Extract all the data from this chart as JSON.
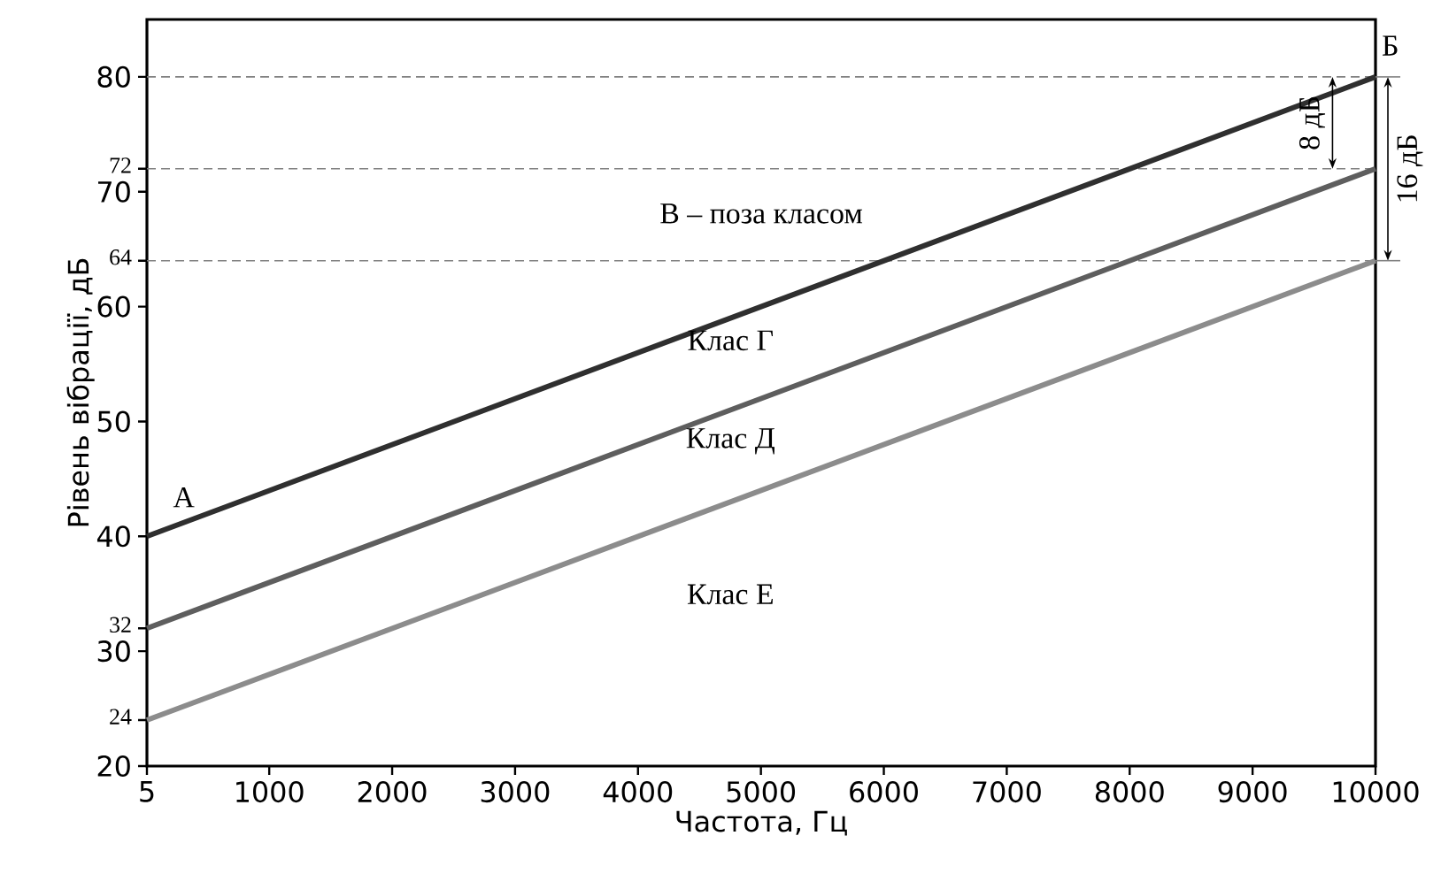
{
  "chart_data": {
    "type": "line",
    "xlabel": "Частота, Гц",
    "ylabel": "Рівень вібрації, дБ",
    "x": [
      5,
      10000
    ],
    "series": [
      {
        "color": "#2f2f2f",
        "values": [
          40,
          80
        ]
      },
      {
        "color": "#5e5e5e",
        "values": [
          32,
          72
        ]
      },
      {
        "color": "#8c8c8c",
        "values": [
          24,
          64
        ]
      }
    ],
    "xlim": [
      5,
      10000
    ],
    "ylim": [
      20,
      85
    ],
    "xticks": [
      5,
      1000,
      2000,
      3000,
      4000,
      5000,
      6000,
      7000,
      8000,
      9000,
      10000
    ],
    "yticks": [
      20,
      24,
      30,
      32,
      40,
      50,
      60,
      64,
      70,
      72,
      80
    ],
    "ref_lines": [
      {
        "axis": "y",
        "value": 80,
        "color": "#808080",
        "line_style": "dashed"
      },
      {
        "axis": "y",
        "value": 72,
        "color": "#808080",
        "line_style": "dashed"
      },
      {
        "axis": "y",
        "value": 64,
        "color": "#808080",
        "line_style": "dashed"
      }
    ],
    "annotations": [
      "А",
      "Б",
      "В – поза класом",
      "Клас Г",
      "Клас Д",
      "Клас Е",
      "8 дБ",
      "16 дБ"
    ],
    "grid": false
  }
}
